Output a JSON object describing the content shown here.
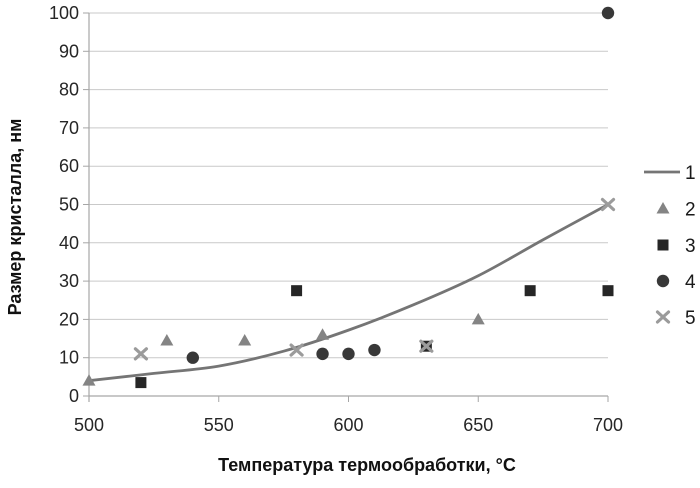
{
  "chart_data": {
    "type": "scatter",
    "title": "",
    "xlabel": "Температура термообработки, °C",
    "ylabel": "Размер кристалла, нм",
    "xlim": [
      500,
      700
    ],
    "ylim": [
      0,
      100
    ],
    "xticks": [
      500,
      550,
      600,
      650,
      700
    ],
    "yticks": [
      0,
      10,
      20,
      30,
      40,
      50,
      60,
      70,
      80,
      90,
      100
    ],
    "grid": "horizontal",
    "legend_position": "right",
    "series": [
      {
        "name": "1",
        "kind": "line",
        "marker": "none",
        "color": "#757575",
        "points": [
          [
            500,
            4
          ],
          [
            525,
            5.9
          ],
          [
            550,
            7.8
          ],
          [
            575,
            11.7
          ],
          [
            600,
            17.2
          ],
          [
            625,
            23.8
          ],
          [
            650,
            31.4
          ],
          [
            675,
            40.8
          ],
          [
            700,
            50
          ]
        ]
      },
      {
        "name": "2",
        "kind": "scatter",
        "marker": "triangle",
        "color": "#848484",
        "points": [
          [
            500,
            4
          ],
          [
            530,
            14.5
          ],
          [
            560,
            14.5
          ],
          [
            590,
            16
          ],
          [
            650,
            20
          ]
        ]
      },
      {
        "name": "3",
        "kind": "scatter",
        "marker": "square",
        "color": "#262626",
        "points": [
          [
            520,
            3.5
          ],
          [
            580,
            27.5
          ],
          [
            630,
            13
          ],
          [
            670,
            27.5
          ],
          [
            700,
            27.5
          ]
        ]
      },
      {
        "name": "4",
        "kind": "scatter",
        "marker": "circle",
        "color": "#383838",
        "points": [
          [
            540,
            10
          ],
          [
            590,
            11
          ],
          [
            600,
            11
          ],
          [
            610,
            12
          ],
          [
            700,
            100
          ]
        ]
      },
      {
        "name": "5",
        "kind": "scatter",
        "marker": "x",
        "color": "#9b9b9b",
        "points": [
          [
            520,
            11
          ],
          [
            580,
            12
          ],
          [
            630,
            13
          ],
          [
            700,
            50
          ]
        ]
      }
    ]
  },
  "colors": {
    "gridline": "#c9c9c9",
    "axis": "#a6a6a6",
    "text": "#1a1a1a"
  }
}
